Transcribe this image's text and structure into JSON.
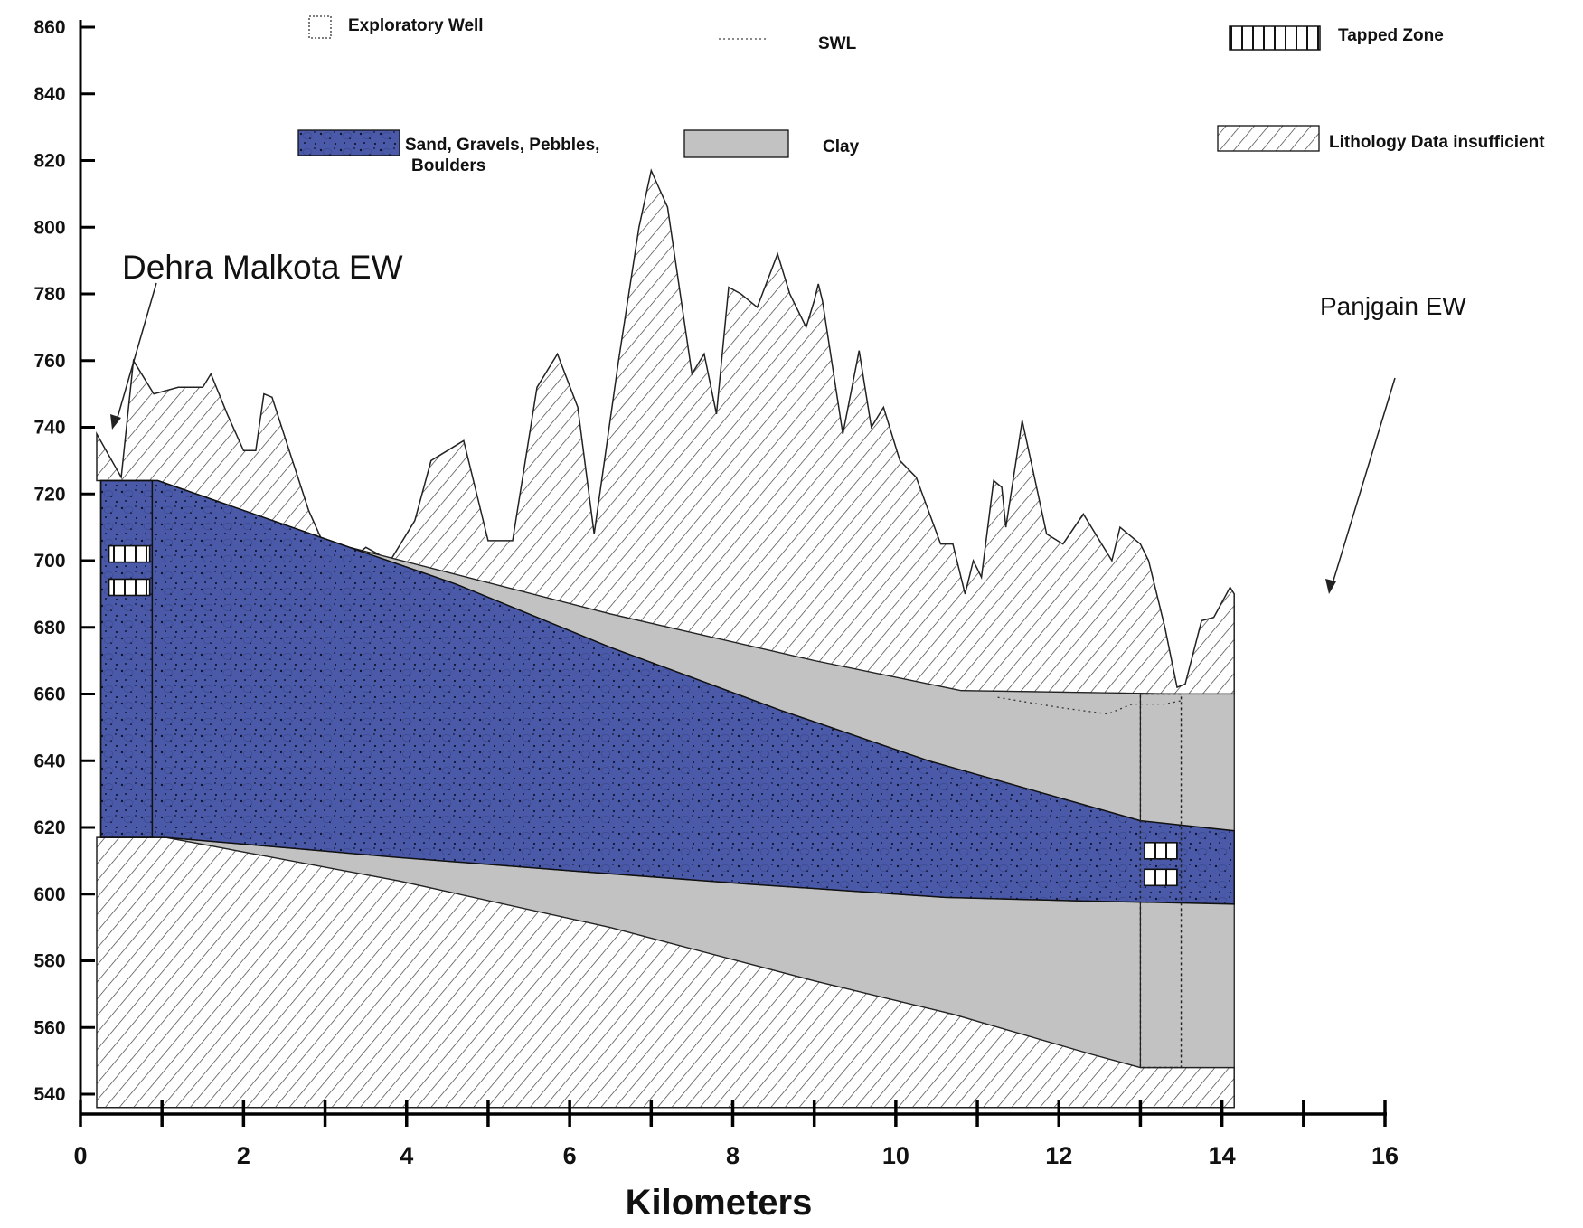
{
  "y_axis": {
    "ticks": [
      "540",
      "560",
      "580",
      "600",
      "620",
      "640",
      "660",
      "680",
      "700",
      "720",
      "740",
      "760",
      "780",
      "800",
      "820",
      "840",
      "860"
    ]
  },
  "x_axis": {
    "title": "Kilometers",
    "ticks": [
      "0",
      "2",
      "4",
      "6",
      "8",
      "10",
      "12",
      "14",
      "16"
    ]
  },
  "legend": {
    "exploratory_well": "Exploratory Well",
    "swl": "SWL",
    "tapped_zone": "Tapped Zone",
    "sand_line1": "Sand, Gravels, Pebbles,",
    "sand_line2": "Boulders",
    "clay": "Clay",
    "lithology": "Lithology Data insufficient"
  },
  "wells": {
    "left": "Dehra Malkota EW",
    "right": "Panjgain EW"
  },
  "colors": {
    "sand": "#4b5aa8",
    "clay": "#c2c2c2",
    "hatch": "#333333"
  },
  "profile": {
    "ground_surface": [
      [
        0.2,
        738
      ],
      [
        0.5,
        725
      ],
      [
        0.65,
        760
      ],
      [
        0.9,
        750
      ],
      [
        1.2,
        752
      ],
      [
        1.5,
        752
      ],
      [
        1.6,
        756
      ],
      [
        1.7,
        750
      ],
      [
        1.8,
        744
      ],
      [
        2.0,
        733
      ],
      [
        2.15,
        733
      ],
      [
        2.25,
        750
      ],
      [
        2.35,
        749
      ],
      [
        2.6,
        730
      ],
      [
        2.8,
        715
      ],
      [
        3.0,
        704
      ],
      [
        3.3,
        700
      ],
      [
        3.5,
        704
      ],
      [
        3.8,
        700
      ],
      [
        4.1,
        712
      ],
      [
        4.3,
        730
      ],
      [
        4.7,
        736
      ],
      [
        5.0,
        706
      ],
      [
        5.3,
        706
      ],
      [
        5.6,
        752
      ],
      [
        5.85,
        762
      ],
      [
        6.1,
        746
      ],
      [
        6.3,
        708
      ],
      [
        6.6,
        760
      ],
      [
        6.85,
        800
      ],
      [
        7.0,
        817
      ],
      [
        7.2,
        806
      ],
      [
        7.5,
        756
      ],
      [
        7.65,
        762
      ],
      [
        7.8,
        744
      ],
      [
        7.95,
        782
      ],
      [
        8.1,
        780
      ],
      [
        8.3,
        776
      ],
      [
        8.55,
        792
      ],
      [
        8.7,
        780
      ],
      [
        8.9,
        770
      ],
      [
        9.0,
        778
      ],
      [
        9.05,
        783
      ],
      [
        9.1,
        778
      ],
      [
        9.35,
        738
      ],
      [
        9.55,
        763
      ],
      [
        9.7,
        740
      ],
      [
        9.85,
        746
      ],
      [
        10.05,
        730
      ],
      [
        10.25,
        725
      ],
      [
        10.55,
        705
      ],
      [
        10.7,
        705
      ],
      [
        10.85,
        690
      ],
      [
        10.95,
        700
      ],
      [
        11.05,
        695
      ],
      [
        11.2,
        724
      ],
      [
        11.3,
        722
      ],
      [
        11.35,
        710
      ],
      [
        11.55,
        742
      ],
      [
        11.85,
        708
      ],
      [
        12.05,
        705
      ],
      [
        12.3,
        714
      ],
      [
        12.5,
        706
      ],
      [
        12.65,
        700
      ],
      [
        12.75,
        710
      ],
      [
        12.9,
        707
      ],
      [
        13.0,
        705
      ],
      [
        13.1,
        700
      ],
      [
        13.3,
        680
      ],
      [
        13.45,
        662
      ],
      [
        13.55,
        663
      ],
      [
        13.75,
        682
      ],
      [
        13.9,
        683
      ],
      [
        14.1,
        692
      ],
      [
        14.15,
        690
      ]
    ],
    "sand_top": [
      [
        0.25,
        724
      ],
      [
        0.95,
        724
      ],
      [
        3.3,
        704
      ],
      [
        4.6,
        693
      ],
      [
        6.5,
        674
      ],
      [
        8.6,
        655
      ],
      [
        10.4,
        640
      ],
      [
        13.0,
        622
      ],
      [
        14.15,
        619
      ]
    ],
    "sand_bottom": [
      [
        0.25,
        617
      ],
      [
        1.05,
        617
      ],
      [
        3.9,
        611
      ],
      [
        6.0,
        607
      ],
      [
        8.2,
        603
      ],
      [
        10.6,
        599
      ],
      [
        12.2,
        598
      ],
      [
        14.15,
        597
      ]
    ],
    "clay_top": [
      [
        3.3,
        704
      ],
      [
        6.5,
        684
      ],
      [
        9.0,
        670
      ],
      [
        10.8,
        661
      ],
      [
        13.5,
        660
      ],
      [
        14.15,
        660
      ]
    ],
    "clay_bottom": [
      [
        1.05,
        617
      ],
      [
        3.9,
        604
      ],
      [
        6.5,
        590
      ],
      [
        9.0,
        574
      ],
      [
        10.7,
        564
      ],
      [
        12.4,
        552
      ],
      [
        13.0,
        548
      ],
      [
        14.15,
        548
      ]
    ],
    "swl": [
      [
        11.25,
        659
      ],
      [
        12.0,
        656
      ],
      [
        12.6,
        654
      ],
      [
        12.9,
        657
      ],
      [
        13.3,
        657
      ],
      [
        13.5,
        658
      ]
    ],
    "tapped_left": [
      702,
      692
    ],
    "tapped_right": [
      613,
      605
    ]
  }
}
